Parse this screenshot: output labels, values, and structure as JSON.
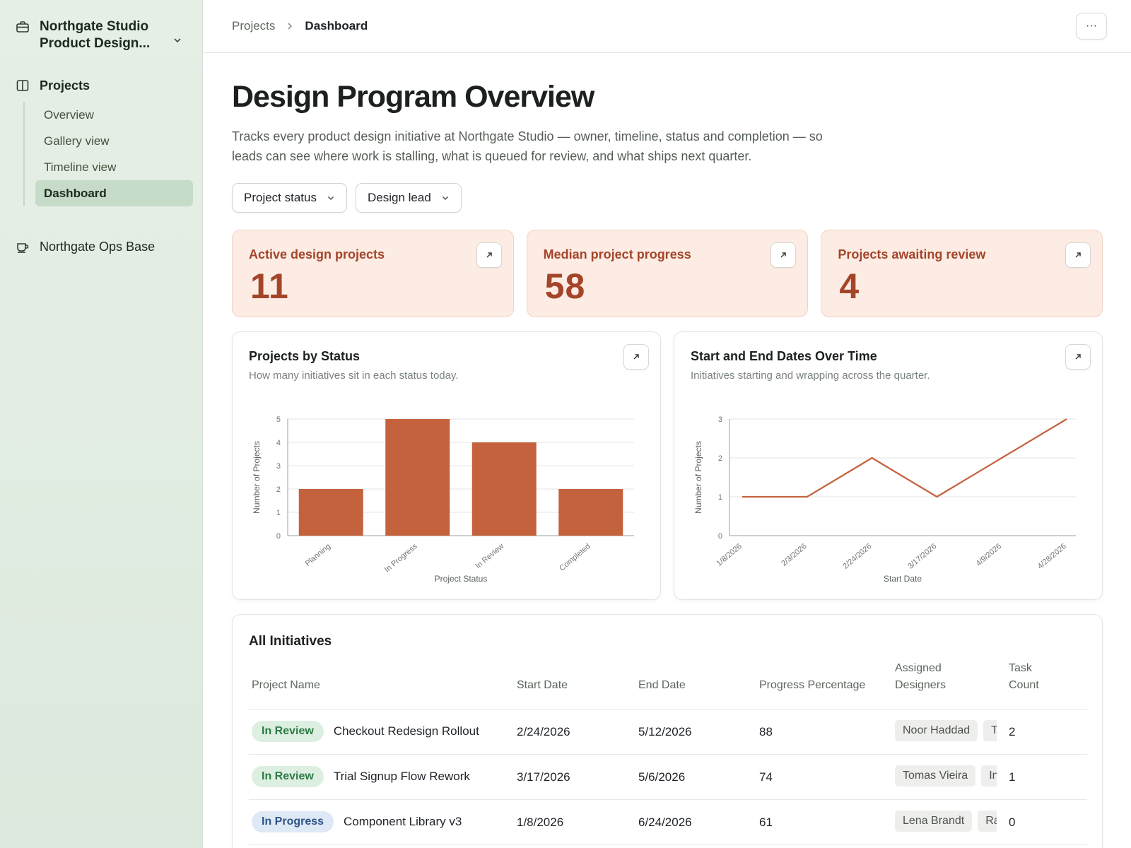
{
  "sidebar": {
    "workspace_name": "Northgate Studio Product Design...",
    "projects_label": "Projects",
    "items": [
      {
        "label": "Overview",
        "active": false
      },
      {
        "label": "Gallery view",
        "active": false
      },
      {
        "label": "Timeline view",
        "active": false
      },
      {
        "label": "Dashboard",
        "active": true
      }
    ],
    "ops_label": "Northgate Ops Base"
  },
  "header": {
    "breadcrumb": [
      "Projects",
      "Dashboard"
    ],
    "more_label": "···"
  },
  "page": {
    "title": "Design Program Overview",
    "description": "Tracks every product design initiative at Northgate Studio — owner, timeline, status and completion — so leads can see where work is stalling, what is queued for review, and what ships next quarter."
  },
  "filters": [
    {
      "label": "Project status"
    },
    {
      "label": "Design lead"
    }
  ],
  "kpis": [
    {
      "label": "Active design projects",
      "value": "11"
    },
    {
      "label": "Median project progress",
      "value": "58"
    },
    {
      "label": "Projects awaiting review",
      "value": "4"
    }
  ],
  "colors": {
    "accent": "#c4623d",
    "kpi_bg": "#fcece4",
    "kpi_text": "#a4452a"
  },
  "chart_data": [
    {
      "type": "bar",
      "title": "Projects by Status",
      "subtitle": "How many initiatives sit in each status today.",
      "categories": [
        "Planning",
        "In Progress",
        "In Review",
        "Completed"
      ],
      "values": [
        2,
        5,
        4,
        2
      ],
      "xlabel": "Project Status",
      "ylabel": "Number of Projects",
      "ylim": [
        0,
        5
      ],
      "yticks": [
        0,
        1,
        2,
        3,
        4,
        5
      ],
      "grid": true
    },
    {
      "type": "line",
      "title": "Start and End Dates Over Time",
      "subtitle": "Initiatives starting and wrapping across the quarter.",
      "x": [
        "1/8/2026",
        "1/29/2026",
        "2/24/2026",
        "3/17/2026",
        "4/9/2026",
        "4/28/2026"
      ],
      "values": [
        1,
        1,
        2,
        1,
        2,
        3
      ],
      "xticks": [
        "1/8/2026",
        "2/3/2026",
        "2/24/2026",
        "3/17/2026",
        "4/9/2026",
        "4/28/2026"
      ],
      "xlabel": "Start Date",
      "ylabel": "Number of Projects",
      "ylim": [
        0,
        3
      ],
      "yticks": [
        0,
        1,
        2,
        3
      ],
      "grid": true
    }
  ],
  "table": {
    "title": "All Initiatives",
    "columns": [
      "Project Name",
      "Start Date",
      "End Date",
      "Progress Percentage",
      "Assigned Designers",
      "Task Count"
    ],
    "rows": [
      {
        "status": "In Review",
        "status_kind": "review",
        "name": "Checkout Redesign Rollout",
        "start": "2/24/2026",
        "end": "5/12/2026",
        "progress": "88",
        "designers": [
          "Noor Haddad",
          "T"
        ],
        "tasks": "2"
      },
      {
        "status": "In Review",
        "status_kind": "review",
        "name": "Trial Signup Flow Rework",
        "start": "3/17/2026",
        "end": "5/6/2026",
        "progress": "74",
        "designers": [
          "Tomas Vieira",
          "In"
        ],
        "tasks": "1"
      },
      {
        "status": "In Progress",
        "status_kind": "progress",
        "name": "Component Library v3",
        "start": "1/8/2026",
        "end": "6/24/2026",
        "progress": "61",
        "designers": [
          "Lena Brandt",
          "Ra"
        ],
        "tasks": "0"
      }
    ]
  }
}
